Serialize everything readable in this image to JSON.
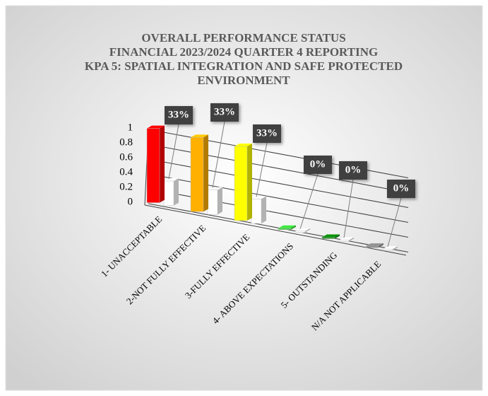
{
  "chart_data": {
    "type": "bar3d",
    "title": [
      "OVERALL PERFORMANCE STATUS",
      "FINANCIAL 2023/2024 QUARTER 4 REPORTING",
      "KPA 5: SPATIAL INTEGRATION AND SAFE PROTECTED",
      "ENVIRONMENT"
    ],
    "categories": [
      "1- UNACCEPTABLE",
      "2-NOT FULLY EFFECTIVE",
      "3-FULLY EFFECTIVE",
      "4- ABOVE EXPECTATIONS",
      "5- OUTSTANDING",
      "N/A NOT APPLICABLE"
    ],
    "series": [
      {
        "colors": [
          "#ff0000",
          "#ffb000",
          "#ffff00",
          "#33cc33",
          "#008000",
          "#808080"
        ],
        "values": [
          1,
          1,
          1,
          0,
          0,
          0
        ]
      },
      {
        "color": "#ffffff",
        "values": [
          0.33,
          0.33,
          0.33,
          0,
          0,
          0
        ],
        "value_labels": [
          "33%",
          "33%",
          "33%",
          "0%",
          "0%",
          "0%"
        ]
      }
    ],
    "ylim": [
      0,
      1
    ],
    "yticks": [
      0,
      0.2,
      0.4,
      0.6,
      0.8,
      1
    ],
    "grid": true
  }
}
